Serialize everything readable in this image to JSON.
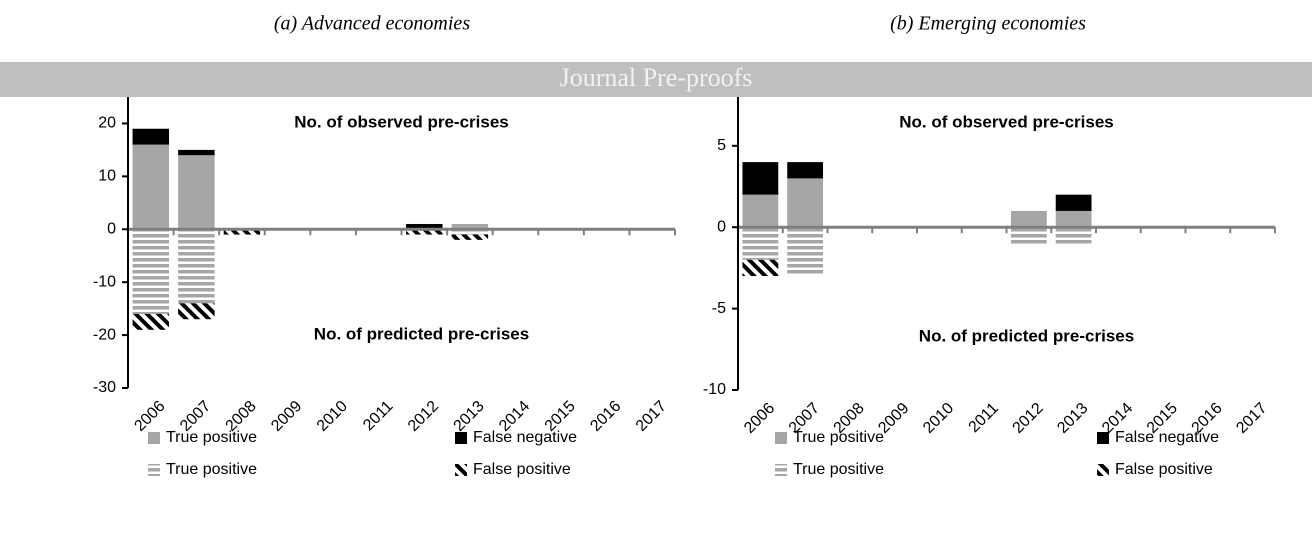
{
  "banner": "Journal Pre-proofs",
  "chart_data": [
    {
      "type": "bar",
      "stacked": true,
      "title": "(a) Advanced economies",
      "categories": [
        "2006",
        "2007",
        "2008",
        "2009",
        "2010",
        "2011",
        "2012",
        "2013",
        "2014",
        "2015",
        "2016",
        "2017"
      ],
      "ylim": [
        -30,
        25
      ],
      "yticks": [
        -30,
        -20,
        -10,
        0,
        10,
        20
      ],
      "annotations": [
        "No. of observed pre-crises",
        "No. of predicted pre-crises"
      ],
      "series": [
        {
          "name": "True positive",
          "color": "#a6a6a6",
          "pattern": "solid",
          "values": [
            16,
            14,
            0,
            0,
            0,
            0,
            0,
            1,
            0,
            0,
            0,
            0
          ]
        },
        {
          "name": "False negative",
          "color": "#000000",
          "pattern": "solid",
          "values": [
            3,
            1,
            0,
            0,
            0,
            0,
            1,
            0,
            0,
            0,
            0,
            0
          ]
        },
        {
          "name": "True positive",
          "color": "#a6a6a6",
          "pattern": "stripes",
          "values": [
            -16,
            -14,
            0,
            0,
            0,
            0,
            0,
            -1,
            0,
            0,
            0,
            0
          ]
        },
        {
          "name": "False positive",
          "color": "#000000",
          "pattern": "hatch",
          "values": [
            -3,
            -3,
            -1,
            0,
            0,
            0,
            -1,
            -1,
            0,
            0,
            0,
            0
          ]
        }
      ]
    },
    {
      "type": "bar",
      "stacked": true,
      "title": "(b) Emerging economies",
      "categories": [
        "2006",
        "2007",
        "2008",
        "2009",
        "2010",
        "2011",
        "2012",
        "2013",
        "2014",
        "2015",
        "2016",
        "2017"
      ],
      "ylim": [
        -10,
        8
      ],
      "yticks": [
        -10,
        -5,
        0,
        5
      ],
      "annotations": [
        "No. of observed pre-crises",
        "No. of predicted pre-crises"
      ],
      "series": [
        {
          "name": "True positive",
          "color": "#a6a6a6",
          "pattern": "solid",
          "values": [
            2,
            3,
            0,
            0,
            0,
            0,
            1,
            1,
            0,
            0,
            0,
            0
          ]
        },
        {
          "name": "False negative",
          "color": "#000000",
          "pattern": "solid",
          "values": [
            2,
            1,
            0,
            0,
            0,
            0,
            0,
            1,
            0,
            0,
            0,
            0
          ]
        },
        {
          "name": "True positive",
          "color": "#a6a6a6",
          "pattern": "stripes",
          "values": [
            -2,
            -3,
            0,
            0,
            0,
            0,
            -1,
            -1,
            0,
            0,
            0,
            0
          ]
        },
        {
          "name": "False positive",
          "color": "#000000",
          "pattern": "hatch",
          "values": [
            -1,
            0,
            0,
            0,
            0,
            0,
            0,
            0,
            0,
            0,
            0,
            0
          ]
        }
      ]
    }
  ]
}
